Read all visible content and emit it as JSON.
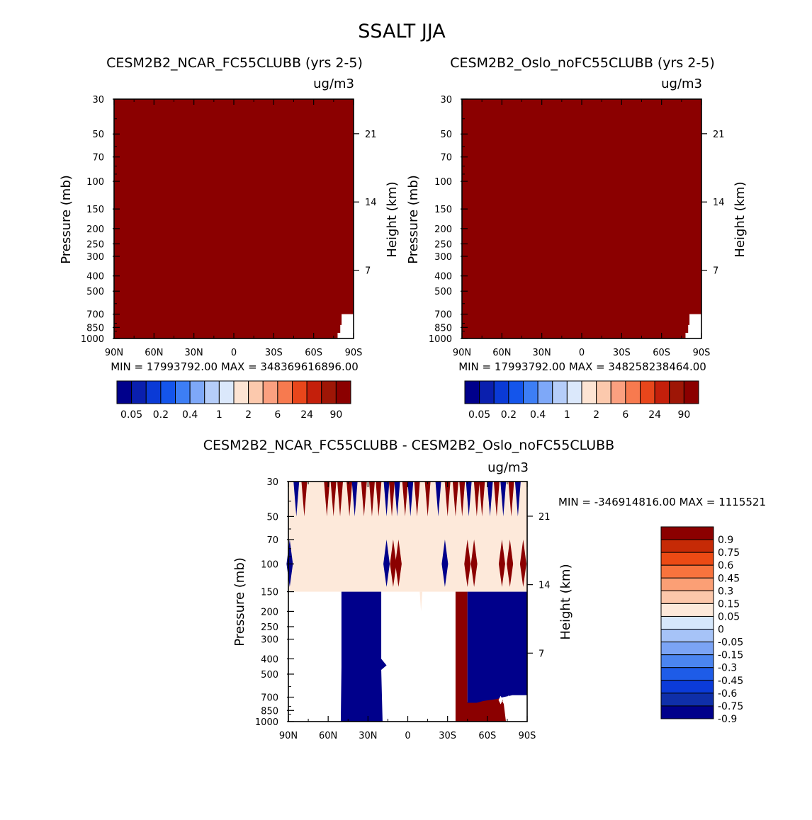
{
  "figure": {
    "title": "SSALT JJA"
  },
  "colors": {
    "abs_levels": [
      "#00008b",
      "#0a1fae",
      "#0a3ad6",
      "#1455eb",
      "#3d7ef5",
      "#7ea8f8",
      "#b5cdf9",
      "#dbe8fb",
      "#fde4d3",
      "#fcc9ad",
      "#fba080",
      "#f77a4f",
      "#e8461b",
      "#c41f0b",
      "#9e1606",
      "#8b0000"
    ],
    "diff_levels": [
      "#00008b",
      "#0f2fa9",
      "#0b3bd9",
      "#1e5ce8",
      "#4b85f0",
      "#7ba4f5",
      "#a6c3f7",
      "#d6e7fb",
      "#fde9da",
      "#fcc7aa",
      "#fb9f75",
      "#f8733d",
      "#ec4a14",
      "#c62a06",
      "#8b0000"
    ],
    "fill_dark_red": "#8b0000",
    "fill_navy": "#00008b",
    "fill_peach": "#fde9da"
  },
  "panels": [
    {
      "title": "CESM2B2_NCAR_FC55CLUBB (yrs 2-5)",
      "units": "ug/m3",
      "ylabel_left": "Pressure (mb)",
      "ylabel_right": "Height (km)",
      "stats": "MIN = 17993792.00   MAX = 348369616896.00"
    },
    {
      "title": "CESM2B2_Oslo_noFC55CLUBB (yrs 2-5)",
      "units": "ug/m3",
      "ylabel_left": "Pressure (mb)",
      "ylabel_right": "Height (km)",
      "stats": "MIN = 17993792.00   MAX = 348258238464.00"
    },
    {
      "title": "CESM2B2_NCAR_FC55CLUBB - CESM2B2_Oslo_noFC55CLUBB",
      "units": "ug/m3",
      "ylabel_left": "Pressure (mb)",
      "ylabel_right": "Height (km)",
      "stats": "MIN = -346914816.00   MAX = 1115521"
    }
  ],
  "chart_data": [
    {
      "type": "heatmap",
      "title": "CESM2B2_NCAR_FC55CLUBB (yrs 2-5)",
      "xlabel": "",
      "ylabel": "Pressure (mb)",
      "ylabel_right": "Height (km)",
      "x_ticks": [
        "90N",
        "60N",
        "30N",
        "0",
        "30S",
        "60S",
        "90S"
      ],
      "x_values": [
        90,
        60,
        30,
        0,
        -30,
        -60,
        -90
      ],
      "y_ticks": [
        "30",
        "50",
        "70",
        "100",
        "150",
        "200",
        "250",
        "300",
        "400",
        "500",
        "700",
        "850",
        "1000"
      ],
      "y_values": [
        30,
        50,
        70,
        100,
        150,
        200,
        250,
        300,
        400,
        500,
        700,
        850,
        1000
      ],
      "y_right_ticks": [
        "21",
        "14",
        "7"
      ],
      "y_right_values": [
        21,
        14,
        7
      ],
      "ylim": [
        1000,
        30
      ],
      "y_scale": "log",
      "colorbar_labels": [
        "0.05",
        "0.2",
        "0.4",
        "1",
        "2",
        "6",
        "24",
        "90"
      ],
      "dominant_value": "> 90 (entire domain)",
      "min": 17993792.0,
      "max": 348369616896.0
    },
    {
      "type": "heatmap",
      "title": "CESM2B2_Oslo_noFC55CLUBB (yrs 2-5)",
      "xlabel": "",
      "ylabel": "Pressure (mb)",
      "ylabel_right": "Height (km)",
      "x_ticks": [
        "90N",
        "60N",
        "30N",
        "0",
        "30S",
        "60S",
        "90S"
      ],
      "x_values": [
        90,
        60,
        30,
        0,
        -30,
        -60,
        -90
      ],
      "y_ticks": [
        "30",
        "50",
        "70",
        "100",
        "150",
        "200",
        "250",
        "300",
        "400",
        "500",
        "700",
        "850",
        "1000"
      ],
      "y_values": [
        30,
        50,
        70,
        100,
        150,
        200,
        250,
        300,
        400,
        500,
        700,
        850,
        1000
      ],
      "y_right_ticks": [
        "21",
        "14",
        "7"
      ],
      "y_right_values": [
        21,
        14,
        7
      ],
      "ylim": [
        1000,
        30
      ],
      "y_scale": "log",
      "colorbar_labels": [
        "0.05",
        "0.2",
        "0.4",
        "1",
        "2",
        "6",
        "24",
        "90"
      ],
      "dominant_value": "> 90 (entire domain)",
      "min": 17993792.0,
      "max": 348258238464.0
    },
    {
      "type": "heatmap",
      "title": "CESM2B2_NCAR_FC55CLUBB - CESM2B2_Oslo_noFC55CLUBB",
      "xlabel": "",
      "ylabel": "Pressure (mb)",
      "ylabel_right": "Height (km)",
      "x_ticks": [
        "90N",
        "60N",
        "30N",
        "0",
        "30S",
        "60S",
        "90S"
      ],
      "x_values": [
        90,
        60,
        30,
        0,
        -30,
        -60,
        -90
      ],
      "y_ticks": [
        "30",
        "50",
        "70",
        "100",
        "150",
        "200",
        "250",
        "300",
        "400",
        "500",
        "700",
        "850",
        "1000"
      ],
      "y_values": [
        30,
        50,
        70,
        100,
        150,
        200,
        250,
        300,
        400,
        500,
        700,
        850,
        1000
      ],
      "y_right_ticks": [
        "21",
        "14",
        "7"
      ],
      "y_right_values": [
        21,
        14,
        7
      ],
      "ylim": [
        1000,
        30
      ],
      "y_scale": "log",
      "colorbar_labels": [
        "0.9",
        "0.75",
        "0.6",
        "0.45",
        "0.3",
        "0.15",
        "0.05",
        "0",
        "-0.05",
        "-0.15",
        "-0.3",
        "-0.45",
        "-0.6",
        "-0.75",
        "-0.9"
      ],
      "regions": [
        {
          "lat_range": [
            50,
            20
          ],
          "p_range": [
            150,
            1000
          ],
          "sign": "negative"
        },
        {
          "lat_range": [
            -36,
            -45
          ],
          "p_range": [
            150,
            1000
          ],
          "sign": "positive"
        },
        {
          "lat_range": [
            -45,
            -90
          ],
          "p_range": [
            150,
            650
          ],
          "sign": "negative"
        },
        {
          "lat_range": [
            -90,
            90
          ],
          "p_range": [
            30,
            150
          ],
          "sign": "near zero (slightly positive)"
        }
      ],
      "min": -346914816.0,
      "max": 1115521
    }
  ]
}
